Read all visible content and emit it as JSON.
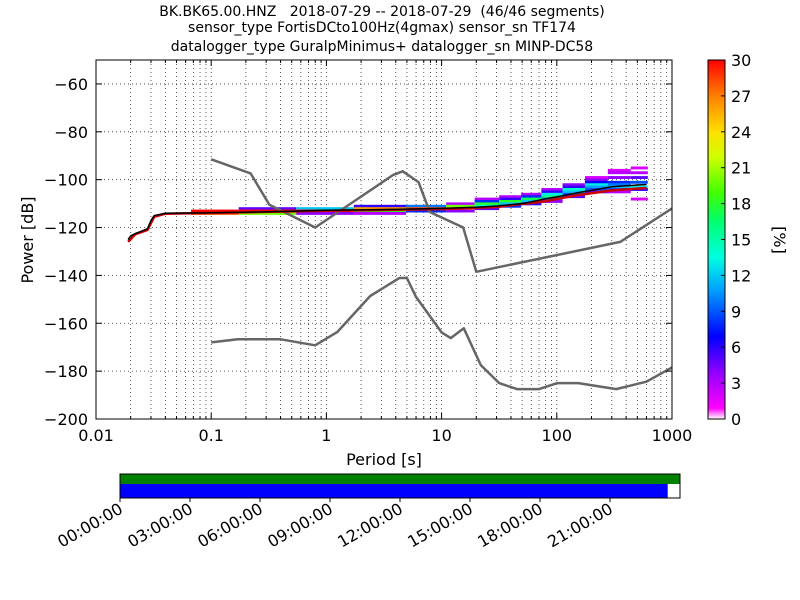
{
  "chart_data": {
    "type": "heatmap",
    "title_lines": [
      "BK.BK65.00.HNZ   2018-07-29 -- 2018-07-29  (46/46 segments)",
      "sensor_type FortisDCto100Hz(4gmax) sensor_sn TF174",
      "datalogger_type GuralpMinimus+ datalogger_sn MINP-DC58"
    ],
    "xlabel": "Period [s]",
    "ylabel": "Power [dB]",
    "x_scale": "log",
    "xlim": [
      0.01,
      1000
    ],
    "ylim": [
      -200,
      -50
    ],
    "x_ticks": [
      0.01,
      0.1,
      1,
      10,
      100,
      1000
    ],
    "x_tick_labels": [
      "0.01",
      "0.1",
      "1",
      "10",
      "100",
      "1000"
    ],
    "y_ticks": [
      -200,
      -180,
      -160,
      -140,
      -120,
      -100,
      -80,
      -60
    ],
    "y_tick_labels": [
      "−200",
      "−180",
      "−160",
      "−140",
      "−120",
      "−100",
      "−80",
      "−60"
    ],
    "grid": "dotted",
    "colorbar": {
      "label": "[%]",
      "range": [
        0,
        30
      ],
      "ticks": [
        0,
        3,
        6,
        9,
        12,
        15,
        18,
        21,
        24,
        27,
        30
      ],
      "tick_labels": [
        "0",
        "3",
        "6",
        "9",
        "12",
        "15",
        "18",
        "21",
        "24",
        "27",
        "30"
      ],
      "colormap": "pqlx"
    },
    "noise_models": [
      {
        "name": "NHNM",
        "color": "#666666",
        "points": [
          [
            0.1,
            -91.5
          ],
          [
            0.22,
            -97.4
          ],
          [
            0.32,
            -110.5
          ],
          [
            0.8,
            -120
          ],
          [
            3.8,
            -98
          ],
          [
            4.6,
            -96.5
          ],
          [
            6.3,
            -101
          ],
          [
            7.9,
            -113.5
          ],
          [
            15.4,
            -120
          ],
          [
            20,
            -138.5
          ],
          [
            354.8,
            -126
          ],
          [
            1000,
            -112
          ]
        ]
      },
      {
        "name": "NLNM",
        "color": "#666666",
        "points": [
          [
            0.1,
            -168
          ],
          [
            0.17,
            -166.7
          ],
          [
            0.4,
            -166.7
          ],
          [
            0.8,
            -169.2
          ],
          [
            1.24,
            -163.7
          ],
          [
            2.4,
            -148.6
          ],
          [
            4.3,
            -141.1
          ],
          [
            5,
            -141.1
          ],
          [
            6,
            -149
          ],
          [
            10,
            -163.8
          ],
          [
            12,
            -166.2
          ],
          [
            15.6,
            -162.1
          ],
          [
            21.9,
            -177.5
          ],
          [
            31.6,
            -185
          ],
          [
            45,
            -187.5
          ],
          [
            70,
            -187.5
          ],
          [
            101,
            -185
          ],
          [
            154,
            -185
          ],
          [
            328,
            -187.5
          ],
          [
            600,
            -184.4
          ],
          [
            1000,
            -178.5
          ]
        ]
      }
    ],
    "median_line": {
      "color": "#000000",
      "points": [
        [
          0.019,
          -125
        ],
        [
          0.02,
          -123.5
        ],
        [
          0.022,
          -122.5
        ],
        [
          0.025,
          -121.5
        ],
        [
          0.028,
          -120.5
        ],
        [
          0.03,
          -117
        ],
        [
          0.032,
          -115
        ],
        [
          0.04,
          -114
        ],
        [
          0.1,
          -113.8
        ],
        [
          0.5,
          -113.2
        ],
        [
          1,
          -112.8
        ],
        [
          3,
          -112.5
        ],
        [
          5,
          -112.3
        ],
        [
          10,
          -112
        ],
        [
          20,
          -111.5
        ],
        [
          30,
          -111
        ],
        [
          50,
          -110
        ],
        [
          80,
          -108
        ],
        [
          100,
          -107.2
        ],
        [
          150,
          -105.5
        ],
        [
          200,
          -104.5
        ],
        [
          300,
          -103
        ],
        [
          400,
          -102.5
        ],
        [
          600,
          -102
        ]
      ]
    },
    "mode_line": {
      "color": "#cc0000",
      "points": [
        [
          0.019,
          -126
        ],
        [
          0.022,
          -122.8
        ],
        [
          0.028,
          -121
        ],
        [
          0.032,
          -115.5
        ],
        [
          0.04,
          -114.2
        ],
        [
          1,
          -113
        ],
        [
          10,
          -112.3
        ],
        [
          30,
          -111.4
        ],
        [
          80,
          -109
        ],
        [
          150,
          -106.5
        ],
        [
          300,
          -104.5
        ],
        [
          600,
          -103.5
        ]
      ]
    },
    "density_columns": [
      {
        "period": 0.1,
        "cells": [
          [
            -113,
            30
          ],
          [
            -114,
            28
          ]
        ]
      },
      {
        "period": 0.3,
        "cells": [
          [
            -112,
            5
          ],
          [
            -113,
            30
          ],
          [
            -114,
            20
          ]
        ]
      },
      {
        "period": 1,
        "cells": [
          [
            -112,
            12
          ],
          [
            -113,
            30
          ],
          [
            -114,
            4
          ]
        ]
      },
      {
        "period": 3,
        "cells": [
          [
            -111,
            6
          ],
          [
            -112,
            26
          ],
          [
            -113,
            18
          ],
          [
            -114,
            3
          ]
        ]
      },
      {
        "period": 8,
        "cells": [
          [
            -111,
            10
          ],
          [
            -112,
            28
          ],
          [
            -113,
            8
          ]
        ]
      },
      {
        "period": 15,
        "cells": [
          [
            -110,
            3
          ],
          [
            -111,
            20
          ],
          [
            -112,
            25
          ],
          [
            -113,
            4
          ]
        ]
      },
      {
        "period": 25,
        "cells": [
          [
            -108,
            3
          ],
          [
            -109,
            8
          ],
          [
            -110,
            18
          ],
          [
            -111,
            14
          ],
          [
            -112,
            5
          ]
        ]
      },
      {
        "period": 40,
        "cells": [
          [
            -107,
            3
          ],
          [
            -108,
            6
          ],
          [
            -109,
            18
          ],
          [
            -110,
            12
          ],
          [
            -111,
            8
          ]
        ]
      },
      {
        "period": 60,
        "cells": [
          [
            -106,
            3
          ],
          [
            -107,
            8
          ],
          [
            -108,
            17
          ],
          [
            -109,
            12
          ],
          [
            -110,
            6
          ]
        ]
      },
      {
        "period": 90,
        "cells": [
          [
            -104,
            3
          ],
          [
            -105,
            6
          ],
          [
            -106,
            13
          ],
          [
            -107,
            16
          ],
          [
            -108,
            10
          ],
          [
            -109,
            4
          ]
        ]
      },
      {
        "period": 140,
        "cells": [
          [
            -102,
            4
          ],
          [
            -103,
            6
          ],
          [
            -104,
            14
          ],
          [
            -105,
            12
          ],
          [
            -106,
            9
          ],
          [
            -107,
            5
          ]
        ]
      },
      {
        "period": 220,
        "cells": [
          [
            -99,
            2
          ],
          [
            -100,
            4
          ],
          [
            -101,
            7
          ],
          [
            -102,
            13
          ],
          [
            -103,
            11
          ],
          [
            -104,
            9
          ],
          [
            -105,
            5
          ]
        ]
      },
      {
        "period": 350,
        "cells": [
          [
            -96,
            2
          ],
          [
            -97,
            3
          ],
          [
            -99,
            4
          ],
          [
            -101,
            8
          ],
          [
            -102,
            10
          ],
          [
            -103,
            12
          ],
          [
            -104,
            9
          ],
          [
            -105,
            3
          ]
        ]
      },
      {
        "period": 550,
        "cells": [
          [
            -95,
            2
          ],
          [
            -97,
            3
          ],
          [
            -99,
            5
          ],
          [
            -101,
            9
          ],
          [
            -103,
            13
          ],
          [
            -104,
            6
          ],
          [
            -108,
            2
          ]
        ]
      }
    ]
  },
  "timeline": {
    "tick_labels": [
      "00:00:00",
      "03:00:00",
      "06:00:00",
      "09:00:00",
      "12:00:00",
      "15:00:00",
      "18:00:00",
      "21:00:00"
    ],
    "coverage_fraction": 0.978,
    "data_color": "#0000ff",
    "segment_color": "#008000"
  }
}
